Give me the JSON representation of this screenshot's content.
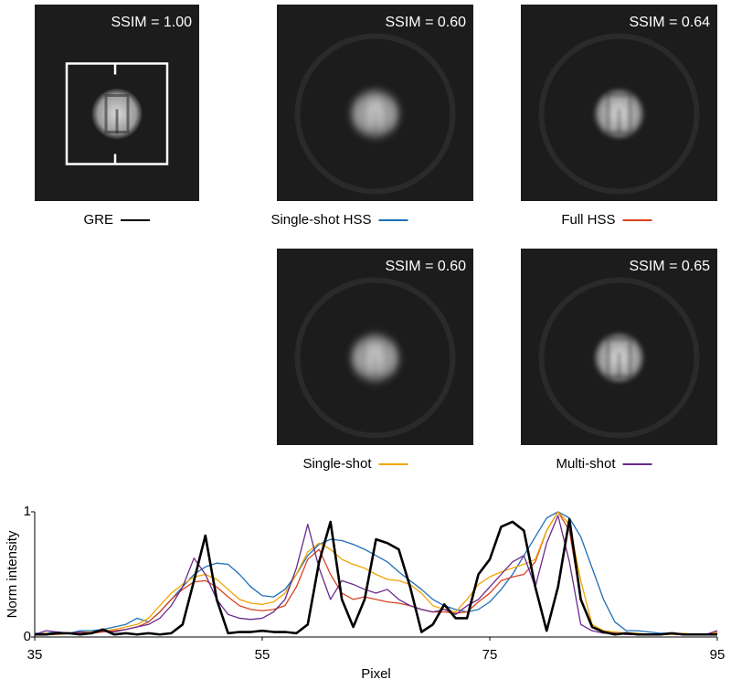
{
  "panels": [
    {
      "ssim": "SSIM = 1.00"
    },
    {
      "ssim": "SSIM = 0.60"
    },
    {
      "ssim": "SSIM = 0.64"
    },
    {
      "ssim": "SSIM = 0.60"
    },
    {
      "ssim": "SSIM = 0.65"
    }
  ],
  "chart_data": {
    "type": "line",
    "xlabel": "Pixel",
    "ylabel": "Norm intensity",
    "xlim": [
      35,
      95
    ],
    "ylim": [
      0,
      1
    ],
    "xticks": [
      35,
      55,
      75,
      95
    ],
    "yticks": [
      0,
      1
    ],
    "x": [
      35,
      36,
      37,
      38,
      39,
      40,
      41,
      42,
      43,
      44,
      45,
      46,
      47,
      48,
      49,
      50,
      51,
      52,
      53,
      54,
      55,
      56,
      57,
      58,
      59,
      60,
      61,
      62,
      63,
      64,
      65,
      66,
      67,
      68,
      69,
      70,
      71,
      72,
      73,
      74,
      75,
      76,
      77,
      78,
      79,
      80,
      81,
      82,
      83,
      84,
      85,
      86,
      87,
      88,
      89,
      90,
      91,
      92,
      93,
      94,
      95
    ],
    "series": [
      {
        "name": "GRE",
        "color": "#000000",
        "width": 2.6,
        "values": [
          0.02,
          0.02,
          0.03,
          0.03,
          0.02,
          0.03,
          0.06,
          0.02,
          0.03,
          0.02,
          0.03,
          0.02,
          0.03,
          0.1,
          0.45,
          0.81,
          0.3,
          0.03,
          0.04,
          0.04,
          0.05,
          0.04,
          0.04,
          0.03,
          0.1,
          0.6,
          0.92,
          0.3,
          0.08,
          0.3,
          0.78,
          0.75,
          0.7,
          0.4,
          0.04,
          0.1,
          0.26,
          0.15,
          0.15,
          0.5,
          0.62,
          0.88,
          0.92,
          0.85,
          0.4,
          0.05,
          0.4,
          0.94,
          0.3,
          0.08,
          0.04,
          0.02,
          0.03,
          0.02,
          0.02,
          0.02,
          0.03,
          0.02,
          0.02,
          0.02,
          0.02
        ]
      },
      {
        "name": "Single-shot HSS",
        "color": "#1f6fb8",
        "width": 1.3,
        "values": [
          0.03,
          0.03,
          0.04,
          0.03,
          0.05,
          0.05,
          0.06,
          0.08,
          0.1,
          0.15,
          0.12,
          0.2,
          0.3,
          0.4,
          0.5,
          0.56,
          0.59,
          0.58,
          0.5,
          0.4,
          0.33,
          0.32,
          0.38,
          0.5,
          0.65,
          0.74,
          0.78,
          0.77,
          0.74,
          0.7,
          0.65,
          0.6,
          0.52,
          0.45,
          0.38,
          0.3,
          0.25,
          0.22,
          0.2,
          0.22,
          0.28,
          0.38,
          0.5,
          0.65,
          0.8,
          0.95,
          1.0,
          0.95,
          0.8,
          0.55,
          0.3,
          0.12,
          0.05,
          0.05,
          0.04,
          0.03,
          0.03,
          0.02,
          0.02,
          0.02,
          0.03
        ]
      },
      {
        "name": "Full HSS",
        "color": "#d9431e",
        "width": 1.3,
        "values": [
          0.02,
          0.02,
          0.02,
          0.03,
          0.03,
          0.03,
          0.04,
          0.05,
          0.06,
          0.08,
          0.12,
          0.2,
          0.3,
          0.38,
          0.44,
          0.45,
          0.4,
          0.32,
          0.25,
          0.22,
          0.21,
          0.22,
          0.25,
          0.4,
          0.62,
          0.7,
          0.5,
          0.35,
          0.3,
          0.32,
          0.3,
          0.28,
          0.27,
          0.25,
          0.22,
          0.2,
          0.2,
          0.19,
          0.2,
          0.28,
          0.35,
          0.45,
          0.48,
          0.5,
          0.6,
          0.85,
          1.0,
          0.85,
          0.3,
          0.08,
          0.04,
          0.03,
          0.02,
          0.02,
          0.02,
          0.02,
          0.02,
          0.02,
          0.02,
          0.02,
          0.03
        ]
      },
      {
        "name": "Single-shot",
        "color": "#f0a500",
        "width": 1.3,
        "values": [
          0.02,
          0.03,
          0.02,
          0.03,
          0.04,
          0.04,
          0.05,
          0.06,
          0.08,
          0.1,
          0.15,
          0.25,
          0.35,
          0.42,
          0.48,
          0.5,
          0.46,
          0.38,
          0.3,
          0.27,
          0.26,
          0.28,
          0.35,
          0.5,
          0.68,
          0.75,
          0.7,
          0.62,
          0.58,
          0.55,
          0.5,
          0.46,
          0.45,
          0.42,
          0.35,
          0.25,
          0.22,
          0.2,
          0.3,
          0.42,
          0.48,
          0.52,
          0.55,
          0.58,
          0.62,
          0.85,
          1.0,
          0.9,
          0.45,
          0.1,
          0.05,
          0.04,
          0.03,
          0.03,
          0.02,
          0.02,
          0.02,
          0.03,
          0.02,
          0.02,
          0.04
        ]
      },
      {
        "name": "Multi-shot",
        "color": "#6a2a8c",
        "width": 1.3,
        "values": [
          0.02,
          0.05,
          0.04,
          0.03,
          0.04,
          0.03,
          0.05,
          0.04,
          0.06,
          0.08,
          0.1,
          0.15,
          0.25,
          0.4,
          0.63,
          0.5,
          0.3,
          0.18,
          0.15,
          0.14,
          0.15,
          0.2,
          0.3,
          0.55,
          0.9,
          0.55,
          0.3,
          0.45,
          0.42,
          0.38,
          0.35,
          0.38,
          0.3,
          0.25,
          0.22,
          0.2,
          0.22,
          0.18,
          0.25,
          0.3,
          0.4,
          0.5,
          0.6,
          0.65,
          0.4,
          0.75,
          0.97,
          0.6,
          0.1,
          0.05,
          0.03,
          0.03,
          0.02,
          0.02,
          0.02,
          0.02,
          0.03,
          0.02,
          0.02,
          0.02,
          0.05
        ]
      }
    ]
  }
}
